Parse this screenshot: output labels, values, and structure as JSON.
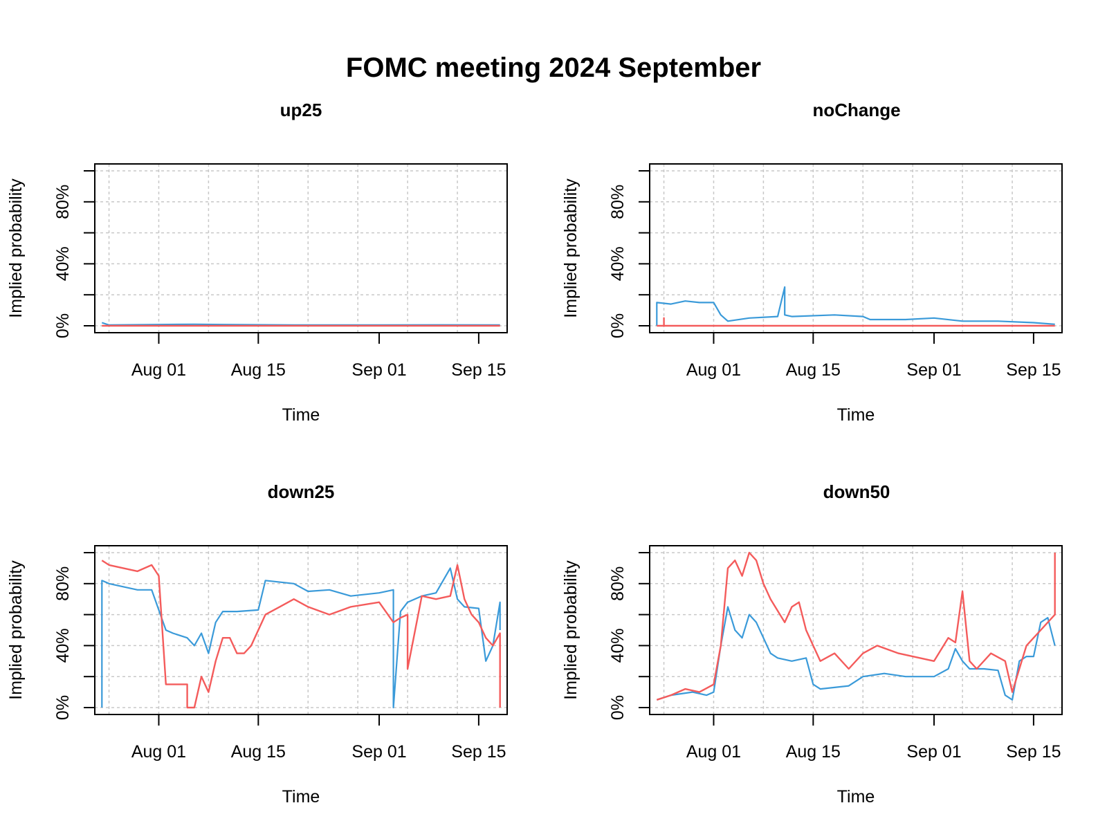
{
  "title": "FOMC meeting 2024 September",
  "colors": {
    "series_a": "#3A9AD9",
    "series_b": "#F45B5B",
    "grid": "#c8c8c8",
    "axis": "#000000"
  },
  "chart_data": [
    {
      "type": "line",
      "title": "up25",
      "xlabel": "Time",
      "ylabel": "Implied probability",
      "x_ticks": [
        "Aug 01",
        "Aug 15",
        "Sep 01",
        "Sep 15"
      ],
      "y_ticks": [
        "0%",
        "40%",
        "80%"
      ],
      "xlim": [
        "2024-07-23",
        "2024-09-19"
      ],
      "ylim": [
        0,
        100
      ],
      "grid": true,
      "series": [
        {
          "color": "#3A9AD9",
          "x": [
            "2024-07-24",
            "2024-07-25",
            "2024-08-01",
            "2024-08-06",
            "2024-08-10",
            "2024-08-20",
            "2024-09-01",
            "2024-09-10",
            "2024-09-18"
          ],
          "y": [
            2,
            0.5,
            0.8,
            1,
            0.8,
            0.5,
            0.5,
            0.6,
            0.5
          ]
        },
        {
          "color": "#F45B5B",
          "x": [
            "2024-07-24",
            "2024-09-18"
          ],
          "y": [
            0,
            0
          ]
        }
      ]
    },
    {
      "type": "line",
      "title": "noChange",
      "xlabel": "Time",
      "ylabel": "Implied probability",
      "x_ticks": [
        "Aug 01",
        "Aug 15",
        "Sep 01",
        "Sep 15"
      ],
      "y_ticks": [
        "0%",
        "40%",
        "80%"
      ],
      "xlim": [
        "2024-07-23",
        "2024-09-19"
      ],
      "ylim": [
        0,
        100
      ],
      "grid": true,
      "series": [
        {
          "color": "#3A9AD9",
          "x": [
            "2024-07-24",
            "2024-07-24",
            "2024-07-26",
            "2024-07-28",
            "2024-07-30",
            "2024-08-01",
            "2024-08-02",
            "2024-08-03",
            "2024-08-06",
            "2024-08-10",
            "2024-08-11",
            "2024-08-11",
            "2024-08-12",
            "2024-08-18",
            "2024-08-22",
            "2024-08-23",
            "2024-08-28",
            "2024-09-01",
            "2024-09-05",
            "2024-09-10",
            "2024-09-15",
            "2024-09-18"
          ],
          "y": [
            0,
            15,
            14,
            16,
            15,
            15,
            7,
            3,
            5,
            6,
            25,
            7,
            6,
            7,
            6,
            4,
            4,
            5,
            3,
            3,
            2,
            1
          ]
        },
        {
          "color": "#F45B5B",
          "x": [
            "2024-07-24",
            "2024-07-25",
            "2024-07-25",
            "2024-07-25",
            "2024-09-18"
          ],
          "y": [
            0,
            0,
            5,
            0,
            0
          ]
        }
      ]
    },
    {
      "type": "line",
      "title": "down25",
      "xlabel": "Time",
      "ylabel": "Implied probability",
      "x_ticks": [
        "Aug 01",
        "Aug 15",
        "Sep 01",
        "Sep 15"
      ],
      "y_ticks": [
        "0%",
        "40%",
        "80%"
      ],
      "xlim": [
        "2024-07-23",
        "2024-09-19"
      ],
      "ylim": [
        0,
        100
      ],
      "grid": true,
      "series": [
        {
          "color": "#3A9AD9",
          "x": [
            "2024-07-24",
            "2024-07-24",
            "2024-07-25",
            "2024-07-27",
            "2024-07-29",
            "2024-07-31",
            "2024-08-02",
            "2024-08-03",
            "2024-08-05",
            "2024-08-06",
            "2024-08-07",
            "2024-08-08",
            "2024-08-09",
            "2024-08-10",
            "2024-08-12",
            "2024-08-15",
            "2024-08-16",
            "2024-08-20",
            "2024-08-22",
            "2024-08-25",
            "2024-08-28",
            "2024-09-01",
            "2024-09-03",
            "2024-09-03",
            "2024-09-04",
            "2024-09-05",
            "2024-09-07",
            "2024-09-09",
            "2024-09-11",
            "2024-09-12",
            "2024-09-13",
            "2024-09-15",
            "2024-09-16",
            "2024-09-17",
            "2024-09-18",
            "2024-09-18"
          ],
          "y": [
            0,
            82,
            80,
            78,
            76,
            76,
            50,
            48,
            45,
            40,
            48,
            35,
            55,
            62,
            62,
            63,
            82,
            80,
            75,
            76,
            72,
            74,
            76,
            0,
            62,
            68,
            72,
            74,
            90,
            70,
            65,
            64,
            30,
            40,
            68,
            50
          ]
        },
        {
          "color": "#F45B5B",
          "x": [
            "2024-07-24",
            "2024-07-25",
            "2024-07-27",
            "2024-07-29",
            "2024-07-31",
            "2024-08-01",
            "2024-08-02",
            "2024-08-03",
            "2024-08-05",
            "2024-08-05",
            "2024-08-06",
            "2024-08-07",
            "2024-08-08",
            "2024-08-09",
            "2024-08-10",
            "2024-08-11",
            "2024-08-12",
            "2024-08-13",
            "2024-08-14",
            "2024-08-15",
            "2024-08-16",
            "2024-08-18",
            "2024-08-20",
            "2024-08-22",
            "2024-08-25",
            "2024-08-28",
            "2024-09-01",
            "2024-09-03",
            "2024-09-04",
            "2024-09-05",
            "2024-09-05",
            "2024-09-07",
            "2024-09-09",
            "2024-09-11",
            "2024-09-12",
            "2024-09-13",
            "2024-09-14",
            "2024-09-15",
            "2024-09-16",
            "2024-09-17",
            "2024-09-18",
            "2024-09-18"
          ],
          "y": [
            95,
            92,
            90,
            88,
            92,
            85,
            15,
            15,
            15,
            0,
            0,
            20,
            10,
            30,
            45,
            45,
            35,
            35,
            40,
            50,
            60,
            65,
            70,
            65,
            60,
            65,
            68,
            55,
            58,
            60,
            25,
            72,
            70,
            72,
            92,
            70,
            60,
            55,
            45,
            40,
            48,
            0
          ]
        }
      ]
    },
    {
      "type": "line",
      "title": "down50",
      "xlabel": "Time",
      "ylabel": "Implied probability",
      "x_ticks": [
        "Aug 01",
        "Aug 15",
        "Sep 01",
        "Sep 15"
      ],
      "y_ticks": [
        "0%",
        "40%",
        "80%"
      ],
      "xlim": [
        "2024-07-23",
        "2024-09-19"
      ],
      "ylim": [
        0,
        100
      ],
      "grid": true,
      "series": [
        {
          "color": "#3A9AD9",
          "x": [
            "2024-07-24",
            "2024-07-26",
            "2024-07-29",
            "2024-07-31",
            "2024-08-01",
            "2024-08-02",
            "2024-08-03",
            "2024-08-04",
            "2024-08-05",
            "2024-08-06",
            "2024-08-07",
            "2024-08-08",
            "2024-08-09",
            "2024-08-10",
            "2024-08-12",
            "2024-08-14",
            "2024-08-15",
            "2024-08-16",
            "2024-08-20",
            "2024-08-22",
            "2024-08-25",
            "2024-08-28",
            "2024-09-01",
            "2024-09-03",
            "2024-09-04",
            "2024-09-05",
            "2024-09-06",
            "2024-09-08",
            "2024-09-10",
            "2024-09-11",
            "2024-09-12",
            "2024-09-13",
            "2024-09-14",
            "2024-09-15",
            "2024-09-16",
            "2024-09-17",
            "2024-09-18"
          ],
          "y": [
            5,
            8,
            10,
            8,
            10,
            40,
            65,
            50,
            45,
            60,
            55,
            45,
            35,
            32,
            30,
            32,
            15,
            12,
            14,
            20,
            22,
            20,
            20,
            25,
            38,
            30,
            25,
            25,
            24,
            8,
            5,
            30,
            33,
            33,
            55,
            58,
            40
          ]
        },
        {
          "color": "#F45B5B",
          "x": [
            "2024-07-24",
            "2024-07-26",
            "2024-07-28",
            "2024-07-30",
            "2024-08-01",
            "2024-08-02",
            "2024-08-03",
            "2024-08-04",
            "2024-08-05",
            "2024-08-06",
            "2024-08-07",
            "2024-08-08",
            "2024-08-09",
            "2024-08-11",
            "2024-08-12",
            "2024-08-13",
            "2024-08-14",
            "2024-08-15",
            "2024-08-16",
            "2024-08-18",
            "2024-08-20",
            "2024-08-22",
            "2024-08-24",
            "2024-08-27",
            "2024-09-01",
            "2024-09-03",
            "2024-09-04",
            "2024-09-05",
            "2024-09-06",
            "2024-09-07",
            "2024-09-09",
            "2024-09-11",
            "2024-09-12",
            "2024-09-13",
            "2024-09-14",
            "2024-09-15",
            "2024-09-16",
            "2024-09-17",
            "2024-09-18",
            "2024-09-18"
          ],
          "y": [
            5,
            8,
            12,
            10,
            15,
            40,
            90,
            95,
            85,
            100,
            95,
            80,
            70,
            55,
            65,
            68,
            50,
            40,
            30,
            35,
            25,
            35,
            40,
            35,
            30,
            45,
            42,
            75,
            30,
            25,
            35,
            30,
            10,
            25,
            40,
            45,
            50,
            55,
            60,
            100
          ]
        }
      ]
    }
  ]
}
